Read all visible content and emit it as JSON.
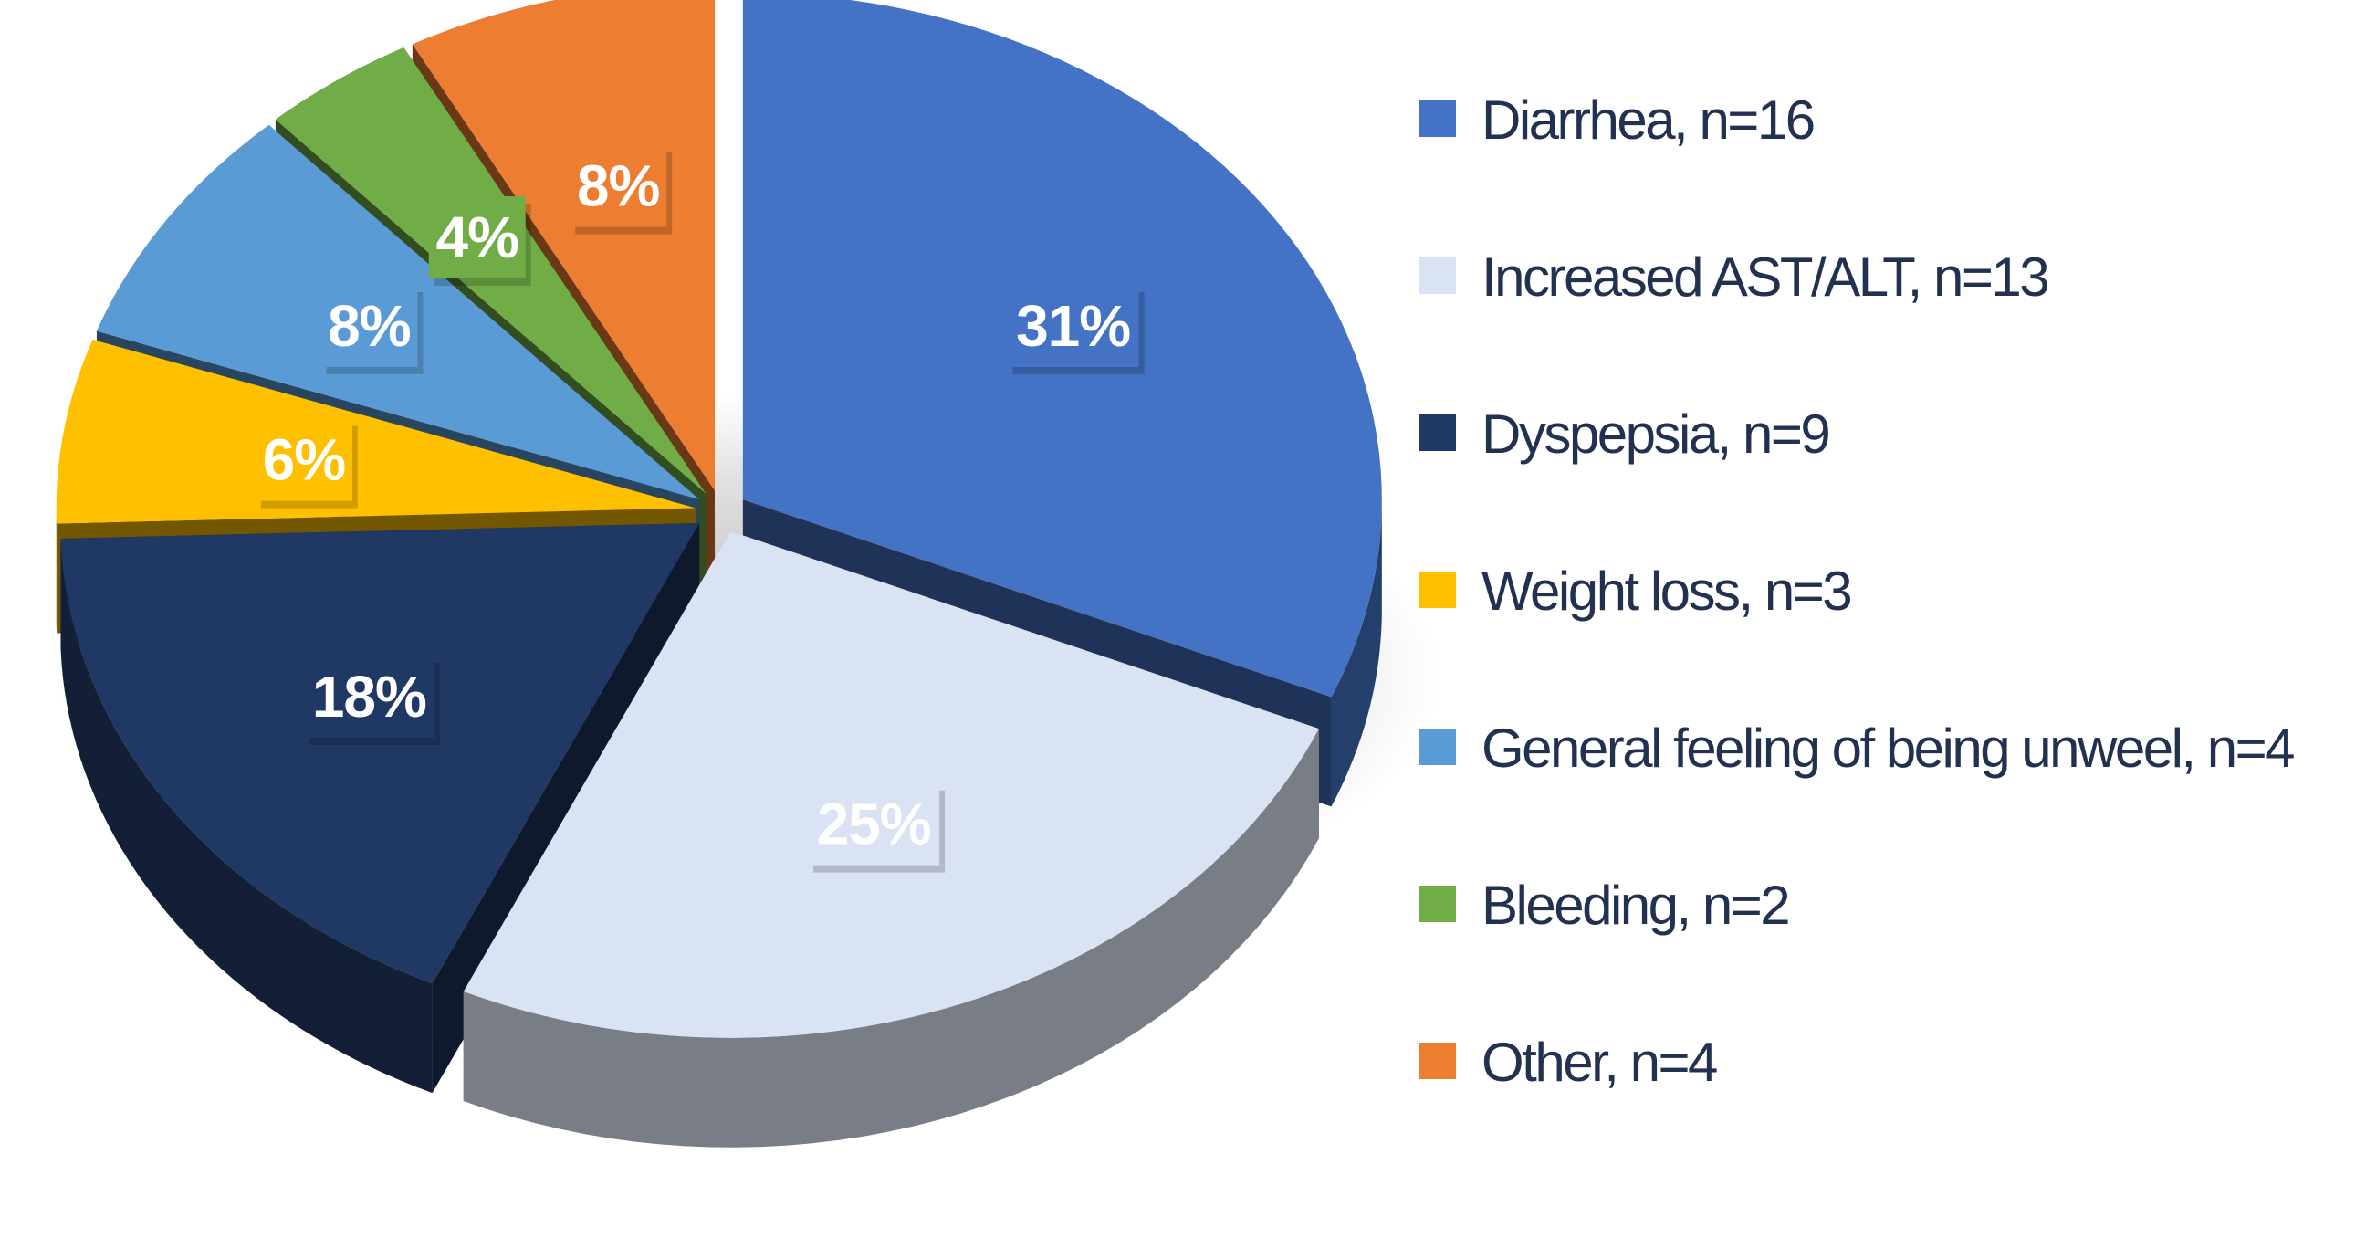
{
  "chart_data": {
    "type": "pie",
    "title": "",
    "style": "3d-exploded",
    "unit": "%",
    "legend_position": "right",
    "slices": [
      {
        "label": "Diarrhea, n=16",
        "n": 16,
        "percent": 31,
        "display": "31%",
        "color": "#4472c4",
        "label_color": "#ffffff"
      },
      {
        "label": "Increased AST/ALT, n=13",
        "n": 13,
        "percent": 25,
        "display": "25%",
        "color": "#dae3f3",
        "label_color": "#ffffff"
      },
      {
        "label": "Dyspepsia, n=9",
        "n": 9,
        "percent": 18,
        "display": "18%",
        "color": "#203864",
        "label_color": "#ffffff"
      },
      {
        "label": "Weight loss, n=3",
        "n": 3,
        "percent": 6,
        "display": "6%",
        "color": "#ffc000",
        "label_color": "#ffffff"
      },
      {
        "label": "General feeling of being unweel, n=4",
        "n": 4,
        "percent": 8,
        "display": "8%",
        "color": "#5b9bd5",
        "label_color": "#ffffff"
      },
      {
        "label": "Bleeding, n=2",
        "n": 2,
        "percent": 4,
        "display": "4%",
        "color": "#70ad47",
        "label_color": "#ffffff"
      },
      {
        "label": "Other, n=4",
        "n": 4,
        "percent": 8,
        "display": "8%",
        "color": "#ed7d31",
        "label_color": "#ffffff"
      }
    ]
  }
}
